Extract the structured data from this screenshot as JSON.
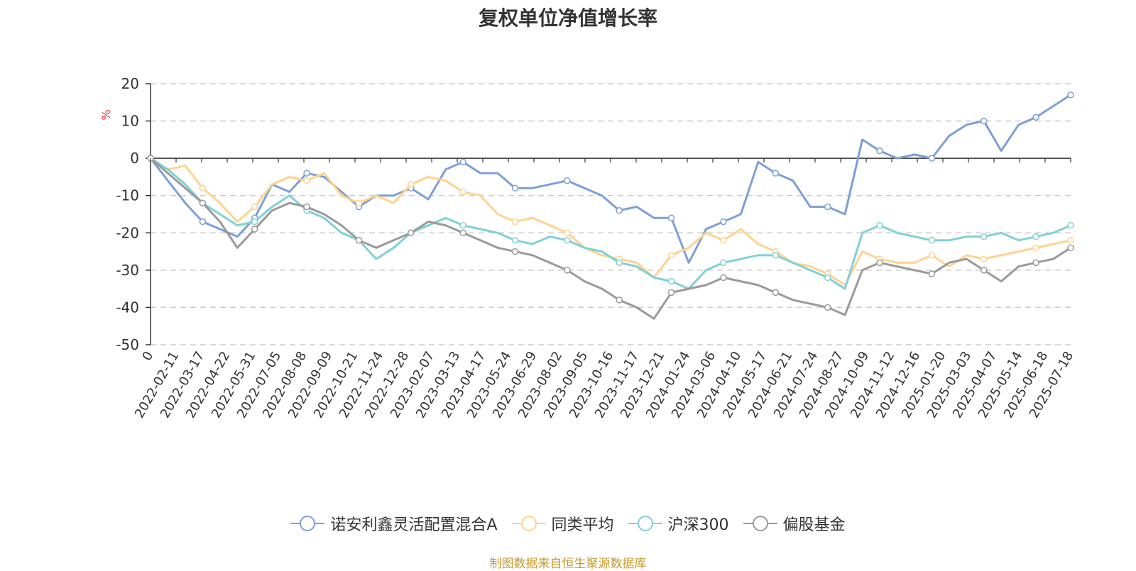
{
  "chart_data": {
    "type": "line",
    "title": "复权单位净值增长率",
    "ylabel": "%",
    "ylim": [
      -50,
      20
    ],
    "yticks": [
      20,
      10,
      0,
      -10,
      -20,
      -30,
      -40,
      -50
    ],
    "grid": true,
    "legend_position": "bottom",
    "source": "制图数据来自恒生聚源数据库",
    "x_tick_labels": [
      "0",
      "2022-02-11",
      "2022-03-17",
      "2022-04-22",
      "2022-05-31",
      "2022-07-05",
      "2022-08-08",
      "2022-09-09",
      "2022-10-21",
      "2022-11-24",
      "2022-12-28",
      "2023-02-07",
      "2023-03-13",
      "2023-04-17",
      "2023-05-24",
      "2023-06-29",
      "2023-08-02",
      "2023-09-05",
      "2023-10-16",
      "2023-11-17",
      "2023-12-21",
      "2024-01-24",
      "2024-03-06",
      "2024-04-10",
      "2024-05-17",
      "2024-06-21",
      "2024-07-24",
      "2024-08-27",
      "2024-10-09",
      "2024-11-12",
      "2024-12-16",
      "2025-01-20",
      "2025-03-03",
      "2025-04-07",
      "2025-05-14",
      "2025-06-18",
      "2025-07-18"
    ],
    "series": [
      {
        "name": "诺安利鑫灵活配置混合A",
        "color": "#7e9fd6",
        "values": [
          0,
          -6,
          -12,
          -17,
          -19,
          -21,
          -16,
          -7,
          -9,
          -4,
          -5,
          -9,
          -13,
          -10,
          -10,
          -8,
          -11,
          -3,
          -1,
          -4,
          -4,
          -8,
          -8,
          -7,
          -6,
          -8,
          -10,
          -14,
          -13,
          -16,
          -16,
          -28,
          -19,
          -17,
          -15,
          -1,
          -4,
          -6,
          -13,
          -13,
          -15,
          5,
          2,
          0,
          1,
          0,
          6,
          9,
          10,
          2,
          9,
          11,
          14,
          17
        ]
      },
      {
        "name": "同类平均",
        "color": "#ffd28f",
        "values": [
          0,
          -3,
          -2,
          -8,
          -12,
          -17,
          -13,
          -7,
          -5,
          -6,
          -4,
          -10,
          -12,
          -10,
          -12,
          -7,
          -5,
          -6,
          -9,
          -10,
          -15,
          -17,
          -16,
          -18,
          -20,
          -24,
          -26,
          -27,
          -28,
          -32,
          -26,
          -24,
          -20,
          -22,
          -19,
          -23,
          -25,
          -28,
          -29,
          -31,
          -34,
          -25,
          -27,
          -28,
          -28,
          -26,
          -29,
          -26,
          -27,
          -26,
          -25,
          -24,
          -23,
          -22
        ]
      },
      {
        "name": "沪深300",
        "color": "#7fd1d6",
        "values": [
          0,
          -3,
          -7,
          -12,
          -15,
          -18,
          -17,
          -13,
          -10,
          -14,
          -16,
          -20,
          -22,
          -27,
          -24,
          -20,
          -18,
          -16,
          -18,
          -19,
          -20,
          -22,
          -23,
          -21,
          -22,
          -24,
          -25,
          -28,
          -29,
          -32,
          -33,
          -35,
          -30,
          -28,
          -27,
          -26,
          -26,
          -28,
          -30,
          -32,
          -35,
          -20,
          -18,
          -20,
          -21,
          -22,
          -22,
          -21,
          -21,
          -20,
          -22,
          -21,
          -20,
          -18
        ]
      },
      {
        "name": "偏股基金",
        "color": "#9a9a9a",
        "values": [
          0,
          -4,
          -8,
          -12,
          -17,
          -24,
          -19,
          -14,
          -12,
          -13,
          -15,
          -18,
          -22,
          -24,
          -22,
          -20,
          -17,
          -18,
          -20,
          -22,
          -24,
          -25,
          -26,
          -28,
          -30,
          -33,
          -35,
          -38,
          -40,
          -43,
          -36,
          -35,
          -34,
          -32,
          -33,
          -34,
          -36,
          -38,
          -39,
          -40,
          -42,
          -30,
          -28,
          -29,
          -30,
          -31,
          -28,
          -27,
          -30,
          -33,
          -29,
          -28,
          -27,
          -24
        ]
      }
    ]
  }
}
